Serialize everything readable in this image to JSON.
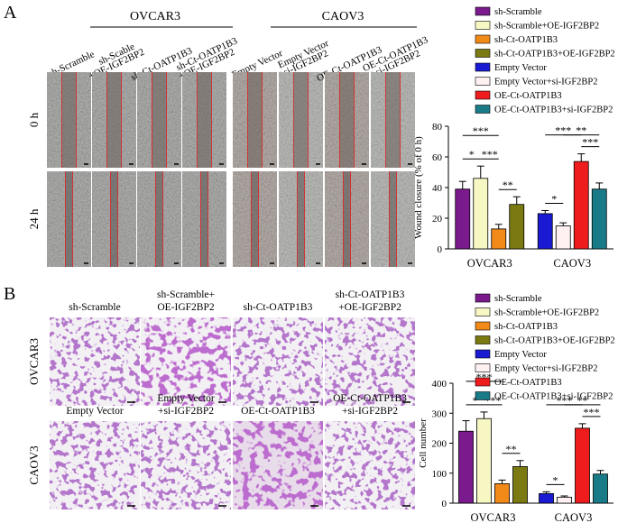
{
  "figure": {
    "panel_a": {
      "letter": "A",
      "group_labels": [
        "OVCAR3",
        "CAOV3"
      ],
      "row_labels": [
        "0 h",
        "24 h"
      ],
      "column_labels": [
        [
          "sh-Scramble"
        ],
        [
          "sh-Scable",
          "+OE-IGF2BP2"
        ],
        [
          "sh-Ct-OATP1B3"
        ],
        [
          "sh-Ct-OATP1B3",
          "+OE-IGF2BP2"
        ],
        [
          "Empty Vector"
        ],
        [
          "Empty Vector",
          "+si-IGF2BP2"
        ],
        [
          "OE-Ct-OATP1B3"
        ],
        [
          "OE-Ct-OATP1B3",
          "+si-IGF2BP2"
        ]
      ]
    },
    "panel_b": {
      "letter": "B",
      "row_labels": [
        "OVCAR3",
        "CAOV3"
      ],
      "image_labels": [
        [
          "sh-Scramble"
        ],
        [
          "sh-Scramble+",
          "OE-IGF2BP2"
        ],
        [
          "sh-Ct-OATP1B3"
        ],
        [
          "sh-Ct-OATP1B3",
          "+OE-IGF2BP2"
        ],
        [
          "Empty Vector"
        ],
        [
          "Empty Vector",
          "+si-IGF2BP2"
        ],
        [
          "OE-Ct-OATP1B3"
        ],
        [
          "OE-Ct-OATP1B3",
          "+si-IGF2BP2"
        ]
      ]
    }
  },
  "chart_data": [
    {
      "type": "bar",
      "y_label": "Wound closure (% of 0 h)",
      "categories": [
        "OVCAR3",
        "CAOV3"
      ],
      "ylim": [
        0,
        80
      ],
      "yticks": [
        0,
        20,
        40,
        60,
        80
      ],
      "series": [
        {
          "name": "sh-Scramble",
          "color": "#7a1a8c",
          "values": [
            39,
            null
          ],
          "errors": [
            5,
            null
          ]
        },
        {
          "name": "sh-Scramble+OE-IGF2BP2",
          "color": "#f7f7c4",
          "values": [
            46,
            null
          ],
          "errors": [
            8,
            null
          ]
        },
        {
          "name": "sh-Ct-OATP1B3",
          "color": "#f28a1a",
          "values": [
            13,
            null
          ],
          "errors": [
            3,
            null
          ]
        },
        {
          "name": "sh-Ct-OATP1B3+OE-IGF2BP2",
          "color": "#7b7a12",
          "values": [
            29,
            null
          ],
          "errors": [
            5,
            null
          ]
        },
        {
          "name": "Empty Vector",
          "color": "#1a1ad2",
          "values": [
            null,
            23
          ],
          "errors": [
            null,
            2
          ]
        },
        {
          "name": "Empty Vector+si-IGF2BP2",
          "color": "#fff1f1",
          "values": [
            null,
            15
          ],
          "errors": [
            null,
            2
          ]
        },
        {
          "name": "OE-Ct-OATP1B3",
          "color": "#ee1c1c",
          "values": [
            null,
            57
          ],
          "errors": [
            null,
            5
          ]
        },
        {
          "name": "OE-Ct-OATP1B3+si-IGF2BP2",
          "color": "#1a7b88",
          "values": [
            null,
            39
          ],
          "errors": [
            null,
            4
          ]
        }
      ],
      "brackets": [
        {
          "label": "*",
          "category": 0,
          "series": [
            0,
            1
          ]
        },
        {
          "label": "***",
          "category": 0,
          "series": [
            1,
            2
          ]
        },
        {
          "label": "***",
          "category": 0,
          "series": [
            0,
            2
          ]
        },
        {
          "label": "**",
          "category": 0,
          "series": [
            2,
            3
          ]
        },
        {
          "label": "*",
          "category": 1,
          "series": [
            4,
            5
          ]
        },
        {
          "label": "***",
          "category": 1,
          "series": [
            4,
            6
          ]
        },
        {
          "label": "***",
          "category": 1,
          "series": [
            6,
            7
          ]
        },
        {
          "label": "**",
          "category": 1,
          "series": [
            5,
            7
          ]
        }
      ]
    },
    {
      "type": "bar",
      "y_label": "Cell number",
      "categories": [
        "OVCAR3",
        "CAOV3"
      ],
      "ylim": [
        0,
        400
      ],
      "yticks": [
        0,
        100,
        200,
        300,
        400
      ],
      "series": [
        {
          "name": "sh-Scramble",
          "color": "#7a1a8c",
          "values": [
            240,
            null
          ],
          "errors": [
            35,
            null
          ]
        },
        {
          "name": "sh-Scramble+OE-IGF2BP2",
          "color": "#f7f7c4",
          "values": [
            282,
            null
          ],
          "errors": [
            22,
            null
          ]
        },
        {
          "name": "sh-Ct-OATP1B3",
          "color": "#f28a1a",
          "values": [
            65,
            null
          ],
          "errors": [
            12,
            null
          ]
        },
        {
          "name": "sh-Ct-OATP1B3+OE-IGF2BP2",
          "color": "#7b7a12",
          "values": [
            122,
            null
          ],
          "errors": [
            20,
            null
          ]
        },
        {
          "name": "Empty Vector",
          "color": "#1a1ad2",
          "values": [
            null,
            32
          ],
          "errors": [
            null,
            6
          ]
        },
        {
          "name": "Empty Vector+si-IGF2BP2",
          "color": "#fff1f1",
          "values": [
            null,
            20
          ],
          "errors": [
            null,
            4
          ]
        },
        {
          "name": "OE-Ct-OATP1B3",
          "color": "#ee1c1c",
          "values": [
            null,
            250
          ],
          "errors": [
            null,
            15
          ]
        },
        {
          "name": "OE-Ct-OATP1B3+si-IGF2BP2",
          "color": "#1a7b88",
          "values": [
            null,
            97
          ],
          "errors": [
            null,
            12
          ]
        }
      ],
      "brackets": [
        {
          "label": "*",
          "category": 0,
          "series": [
            0,
            1
          ]
        },
        {
          "label": "***",
          "category": 0,
          "series": [
            1,
            2
          ]
        },
        {
          "label": "***",
          "category": 0,
          "series": [
            0,
            2
          ]
        },
        {
          "label": "**",
          "category": 0,
          "series": [
            2,
            3
          ]
        },
        {
          "label": "*",
          "category": 1,
          "series": [
            4,
            5
          ]
        },
        {
          "label": "***",
          "category": 1,
          "series": [
            4,
            6
          ]
        },
        {
          "label": "***",
          "category": 1,
          "series": [
            6,
            7
          ]
        },
        {
          "label": "**",
          "category": 1,
          "series": [
            5,
            7
          ]
        }
      ]
    }
  ]
}
